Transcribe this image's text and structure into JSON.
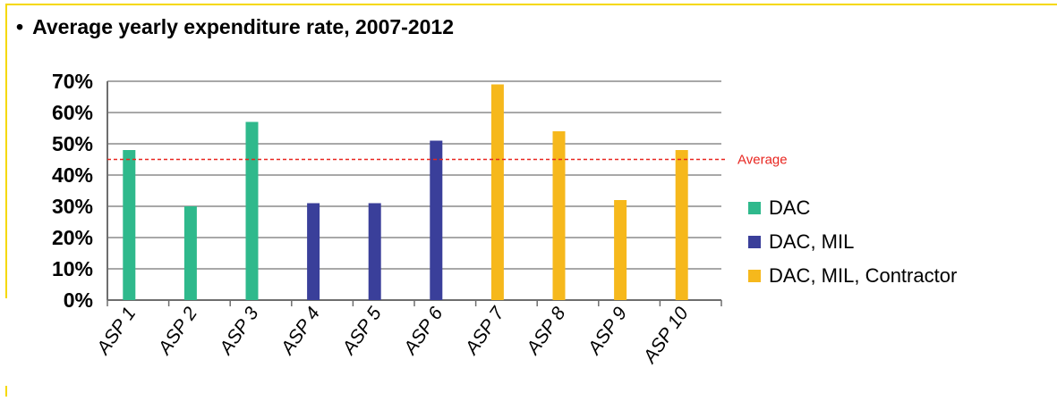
{
  "title": "Average yearly expenditure rate, 2007-2012",
  "bullet": "•",
  "chart_data": {
    "type": "bar",
    "title": "Average yearly expenditure rate, 2007-2012",
    "categories": [
      "ASP 1",
      "ASP 2",
      "ASP 3",
      "ASP 4",
      "ASP 5",
      "ASP 6",
      "ASP 7",
      "ASP 8",
      "ASP 9",
      "ASP 10"
    ],
    "values": [
      48,
      30,
      57,
      31,
      31,
      51,
      69,
      54,
      32,
      48
    ],
    "groups": [
      "DAC",
      "DAC",
      "DAC",
      "DAC, MIL",
      "DAC, MIL",
      "DAC, MIL",
      "DAC, MIL, Contractor",
      "DAC, MIL, Contractor",
      "DAC, MIL, Contractor",
      "DAC, MIL, Contractor"
    ],
    "ylim": [
      0,
      70
    ],
    "yticks": [
      0,
      10,
      20,
      30,
      40,
      50,
      60,
      70
    ],
    "ytick_labels": [
      "0%",
      "10%",
      "20%",
      "30%",
      "40%",
      "50%",
      "60%",
      "70%"
    ],
    "average": {
      "value": 45,
      "label": "Average",
      "color": "#e8251f"
    },
    "legend": [
      {
        "name": "DAC",
        "color": "#2fb98c"
      },
      {
        "name": "DAC, MIL",
        "color": "#3a3f9a"
      },
      {
        "name": "DAC, MIL, Contractor",
        "color": "#f6b81c"
      }
    ],
    "legend_position": "right",
    "grid": true,
    "xlabel": "",
    "ylabel": ""
  },
  "colors": {
    "frame": "#f5d800",
    "grid": "#8c8c8c"
  }
}
